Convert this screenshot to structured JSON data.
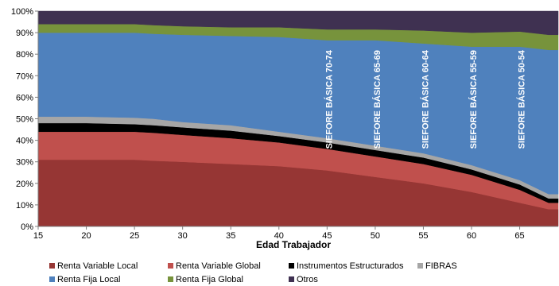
{
  "chart_data": {
    "type": "area",
    "stacked": true,
    "xlabel": "Edad Trabajador",
    "ylabel": "",
    "title": "",
    "xlim": [
      15,
      69
    ],
    "ylim": [
      0,
      100
    ],
    "x_ticks": [
      "15",
      "20",
      "25",
      "30",
      "35",
      "40",
      "45",
      "50",
      "55",
      "60",
      "65"
    ],
    "y_ticks": [
      "0%",
      "10%",
      "20%",
      "30%",
      "40%",
      "50%",
      "60%",
      "70%",
      "80%",
      "90%",
      "100%"
    ],
    "x": [
      15,
      20,
      25,
      27,
      30,
      35,
      40,
      45,
      50,
      55,
      60,
      65,
      68,
      69
    ],
    "series": [
      {
        "name": "Renta Variable Local",
        "color": "#963634",
        "values": [
          31,
          31,
          31,
          30.5,
          30,
          29,
          28,
          26,
          23,
          20,
          16,
          11,
          8,
          8
        ]
      },
      {
        "name": "Renta Variable Global",
        "color": "#c0504d",
        "values": [
          13,
          13,
          13,
          13,
          12.5,
          12,
          11,
          10,
          9.5,
          9,
          8,
          6,
          3,
          3
        ]
      },
      {
        "name": "Instrumentos Estructurados",
        "color": "#000000",
        "values": [
          4,
          4,
          3.5,
          3.5,
          3.5,
          3.5,
          3,
          3,
          3,
          3,
          2.5,
          2.5,
          2,
          2
        ]
      },
      {
        "name": "FIBRAS",
        "color": "#a6a6a6",
        "values": [
          3,
          3,
          3,
          3,
          2.5,
          2.5,
          2,
          2,
          2,
          2,
          2,
          2,
          2,
          2
        ]
      },
      {
        "name": "Renta Fija Local",
        "color": "#4f81bd",
        "values": [
          39,
          39,
          39.5,
          39.5,
          40.5,
          41.5,
          44,
          45.5,
          49,
          51,
          55,
          62,
          67,
          67
        ]
      },
      {
        "name": "Renta Fija Global",
        "color": "#77933c",
        "values": [
          4,
          4,
          4,
          4,
          4,
          4,
          4.5,
          5,
          5,
          6,
          6.5,
          7,
          7,
          7
        ]
      },
      {
        "name": "Otros",
        "color": "#3f3151",
        "values": [
          6,
          6,
          6,
          6.5,
          7,
          7.5,
          7.5,
          8.5,
          8.5,
          9,
          10,
          9.5,
          11,
          11
        ]
      }
    ],
    "annotations": [
      {
        "text": "SIEFORE BÁSICA 70-74",
        "x": 45.5
      },
      {
        "text": "SIEFORE BÁSICA 65-69",
        "x": 50.5
      },
      {
        "text": "SIEFORE BÁSICA 60-64",
        "x": 55.5
      },
      {
        "text": "SIEFORE BÁSICA 55-59",
        "x": 60.5
      },
      {
        "text": "SIEFORE BÁSICA 50-54",
        "x": 65.5
      }
    ],
    "legend_position": "bottom"
  },
  "legend": {
    "rows": [
      [
        {
          "label": "Renta Variable Local",
          "color": "#963634"
        },
        {
          "label": "Renta Variable Global",
          "color": "#c0504d"
        },
        {
          "label": "Instrumentos Estructurados",
          "color": "#000000"
        },
        {
          "label": "FIBRAS",
          "color": "#a6a6a6"
        }
      ],
      [
        {
          "label": "Renta Fija Local",
          "color": "#4f81bd"
        },
        {
          "label": "Renta Fija Global",
          "color": "#77933c"
        },
        {
          "label": "Otros",
          "color": "#3f3151"
        }
      ]
    ]
  }
}
